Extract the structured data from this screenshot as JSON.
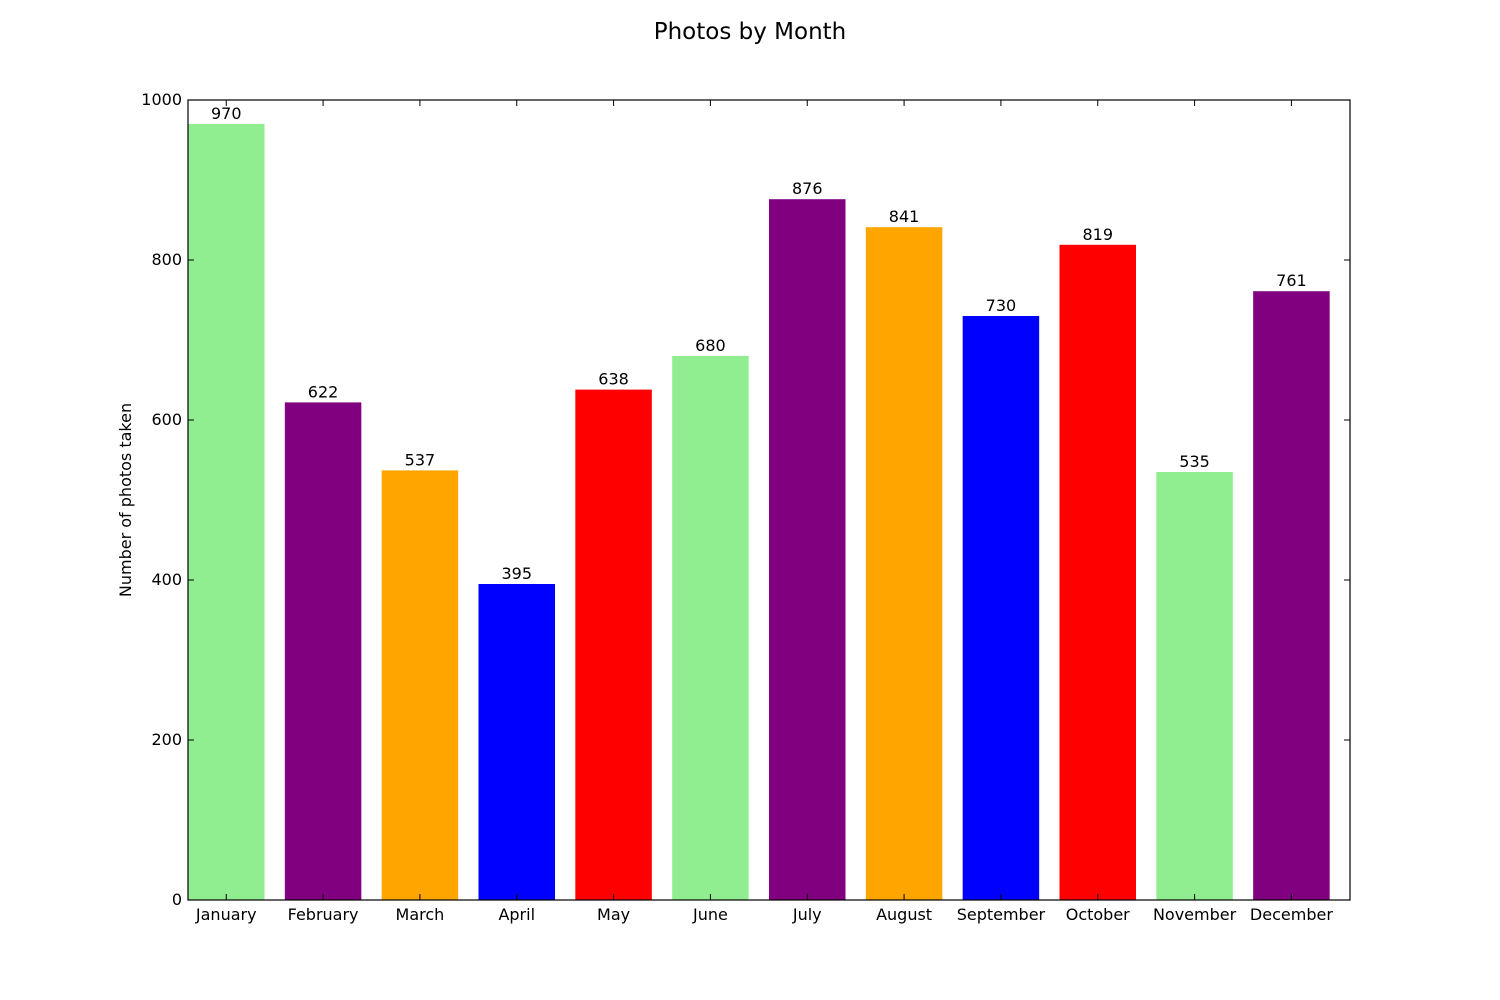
{
  "chart_data": {
    "type": "bar",
    "title": "Photos by Month",
    "xlabel": "",
    "ylabel": "Number of photos taken",
    "categories": [
      "January",
      "February",
      "March",
      "April",
      "May",
      "June",
      "July",
      "August",
      "September",
      "October",
      "November",
      "December"
    ],
    "values": [
      970,
      622,
      537,
      395,
      638,
      680,
      876,
      841,
      730,
      819,
      535,
      761
    ],
    "colors": [
      "#90ee90",
      "#800080",
      "#ffa500",
      "#0000ff",
      "#ff0000",
      "#90ee90",
      "#800080",
      "#ffa500",
      "#0000ff",
      "#ff0000",
      "#90ee90",
      "#800080"
    ],
    "ylim": [
      0,
      1000
    ],
    "yticks": [
      0,
      200,
      400,
      600,
      800,
      1000
    ],
    "yticks_labels": [
      "0",
      "200",
      "400",
      "600",
      "800",
      "1000"
    ],
    "grid": false,
    "legend": "none",
    "data_labels": [
      "970",
      "622",
      "537",
      "395",
      "638",
      "680",
      "876",
      "841",
      "730",
      "819",
      "535",
      "761"
    ]
  }
}
